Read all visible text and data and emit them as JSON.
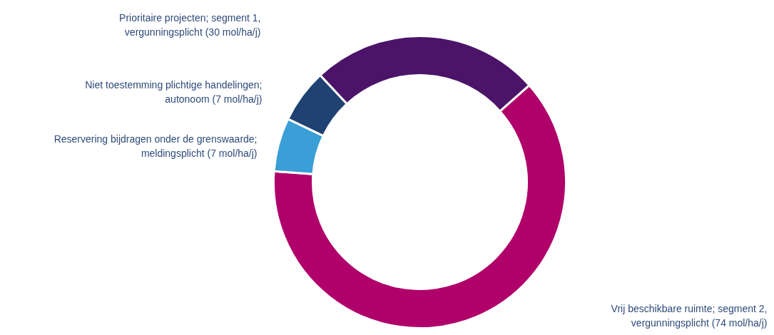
{
  "chart_data": {
    "type": "donut",
    "categories": [
      "Prioritaire projecten; segment 1,\nvergunningsplicht",
      "Vrij beschikbare ruimte; segment 2,\nvergunningsplicht",
      "Reservering bijdragen onder de grenswaarde;\nmeldingsplicht",
      "Niet toestemming plichtige handelingen;\nautonoom"
    ],
    "values": [
      30,
      74,
      7,
      7
    ],
    "value_labels": [
      "(30 mol/ha/j)",
      "(74 mol/ha/j)",
      "(7 mol/ha/j)",
      "(7 mol/ha/j)"
    ],
    "colors": [
      "#4b1469",
      "#b0006a",
      "#3a9fd6",
      "#1f4272"
    ]
  }
}
